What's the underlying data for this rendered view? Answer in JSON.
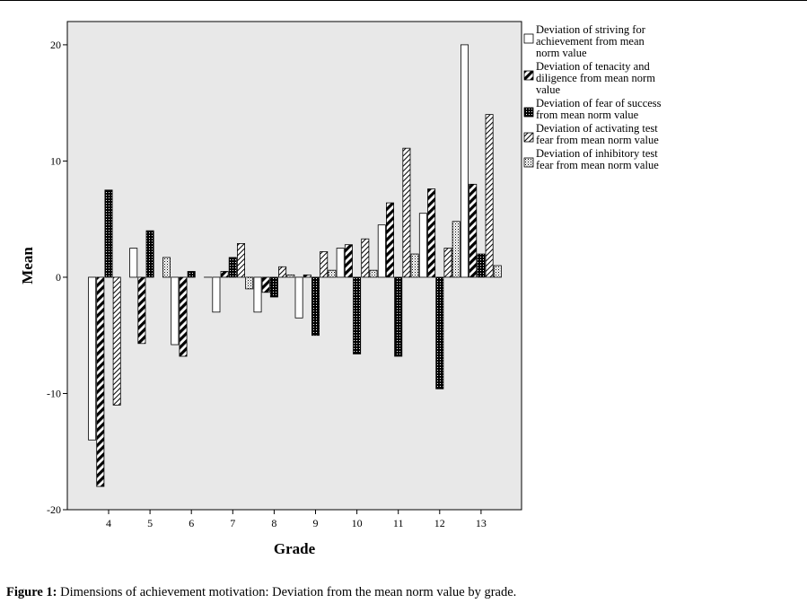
{
  "chart_data": {
    "type": "bar",
    "xlabel": "Grade",
    "ylabel": "Mean",
    "ylim": [
      -20,
      22
    ],
    "yticks": [
      20,
      10,
      0,
      -10,
      -20
    ],
    "grid": false,
    "legend_position": "right",
    "categories": [
      "4",
      "5",
      "6",
      "7",
      "8",
      "9",
      "10",
      "11",
      "12",
      "13"
    ],
    "series": [
      {
        "name": "Deviation of striving for achievement from mean norm value",
        "name_lines": [
          "Deviation of striving for",
          "achievement from mean",
          "norm value"
        ],
        "pattern": "empty",
        "values": [
          -14,
          2.5,
          -5.8,
          -3,
          -3,
          -3.5,
          2.5,
          4.5,
          5.5,
          20
        ]
      },
      {
        "name": "Deviation of tenacity and diligence from mean norm value",
        "name_lines": [
          "Deviation of tenacity and",
          "diligence from mean norm",
          "value"
        ],
        "pattern": "diagonal-heavy",
        "values": [
          -18,
          -5.7,
          -6.8,
          0.5,
          -1.3,
          0.2,
          2.8,
          6.4,
          7.6,
          8
        ]
      },
      {
        "name": "Deviation of fear of success from mean norm value",
        "name_lines": [
          "Deviation of fear of success",
          "from mean norm value"
        ],
        "pattern": "dense-dots",
        "values": [
          7.5,
          4,
          0.5,
          1.7,
          -1.7,
          -5,
          -6.6,
          -6.8,
          -9.6,
          2
        ]
      },
      {
        "name": "Deviation of activating test fear from mean norm value",
        "name_lines": [
          "Deviation of activating test",
          "fear from mean norm value"
        ],
        "pattern": "diagonal-light",
        "values": [
          -11,
          null,
          null,
          2.9,
          0.9,
          2.2,
          3.3,
          11.1,
          2.5,
          14
        ]
      },
      {
        "name": "Deviation of inhibitory test fear from mean norm value",
        "name_lines": [
          "Deviation of inhibitory test",
          "fear from mean norm value"
        ],
        "pattern": "light-dots",
        "values": [
          null,
          1.7,
          0,
          -1,
          0.2,
          0.6,
          0.6,
          2,
          4.8,
          1
        ]
      }
    ]
  },
  "caption": {
    "label": "Figure 1:",
    "text": " Dimensions of achievement motivation: Deviation from the mean norm value by grade."
  }
}
